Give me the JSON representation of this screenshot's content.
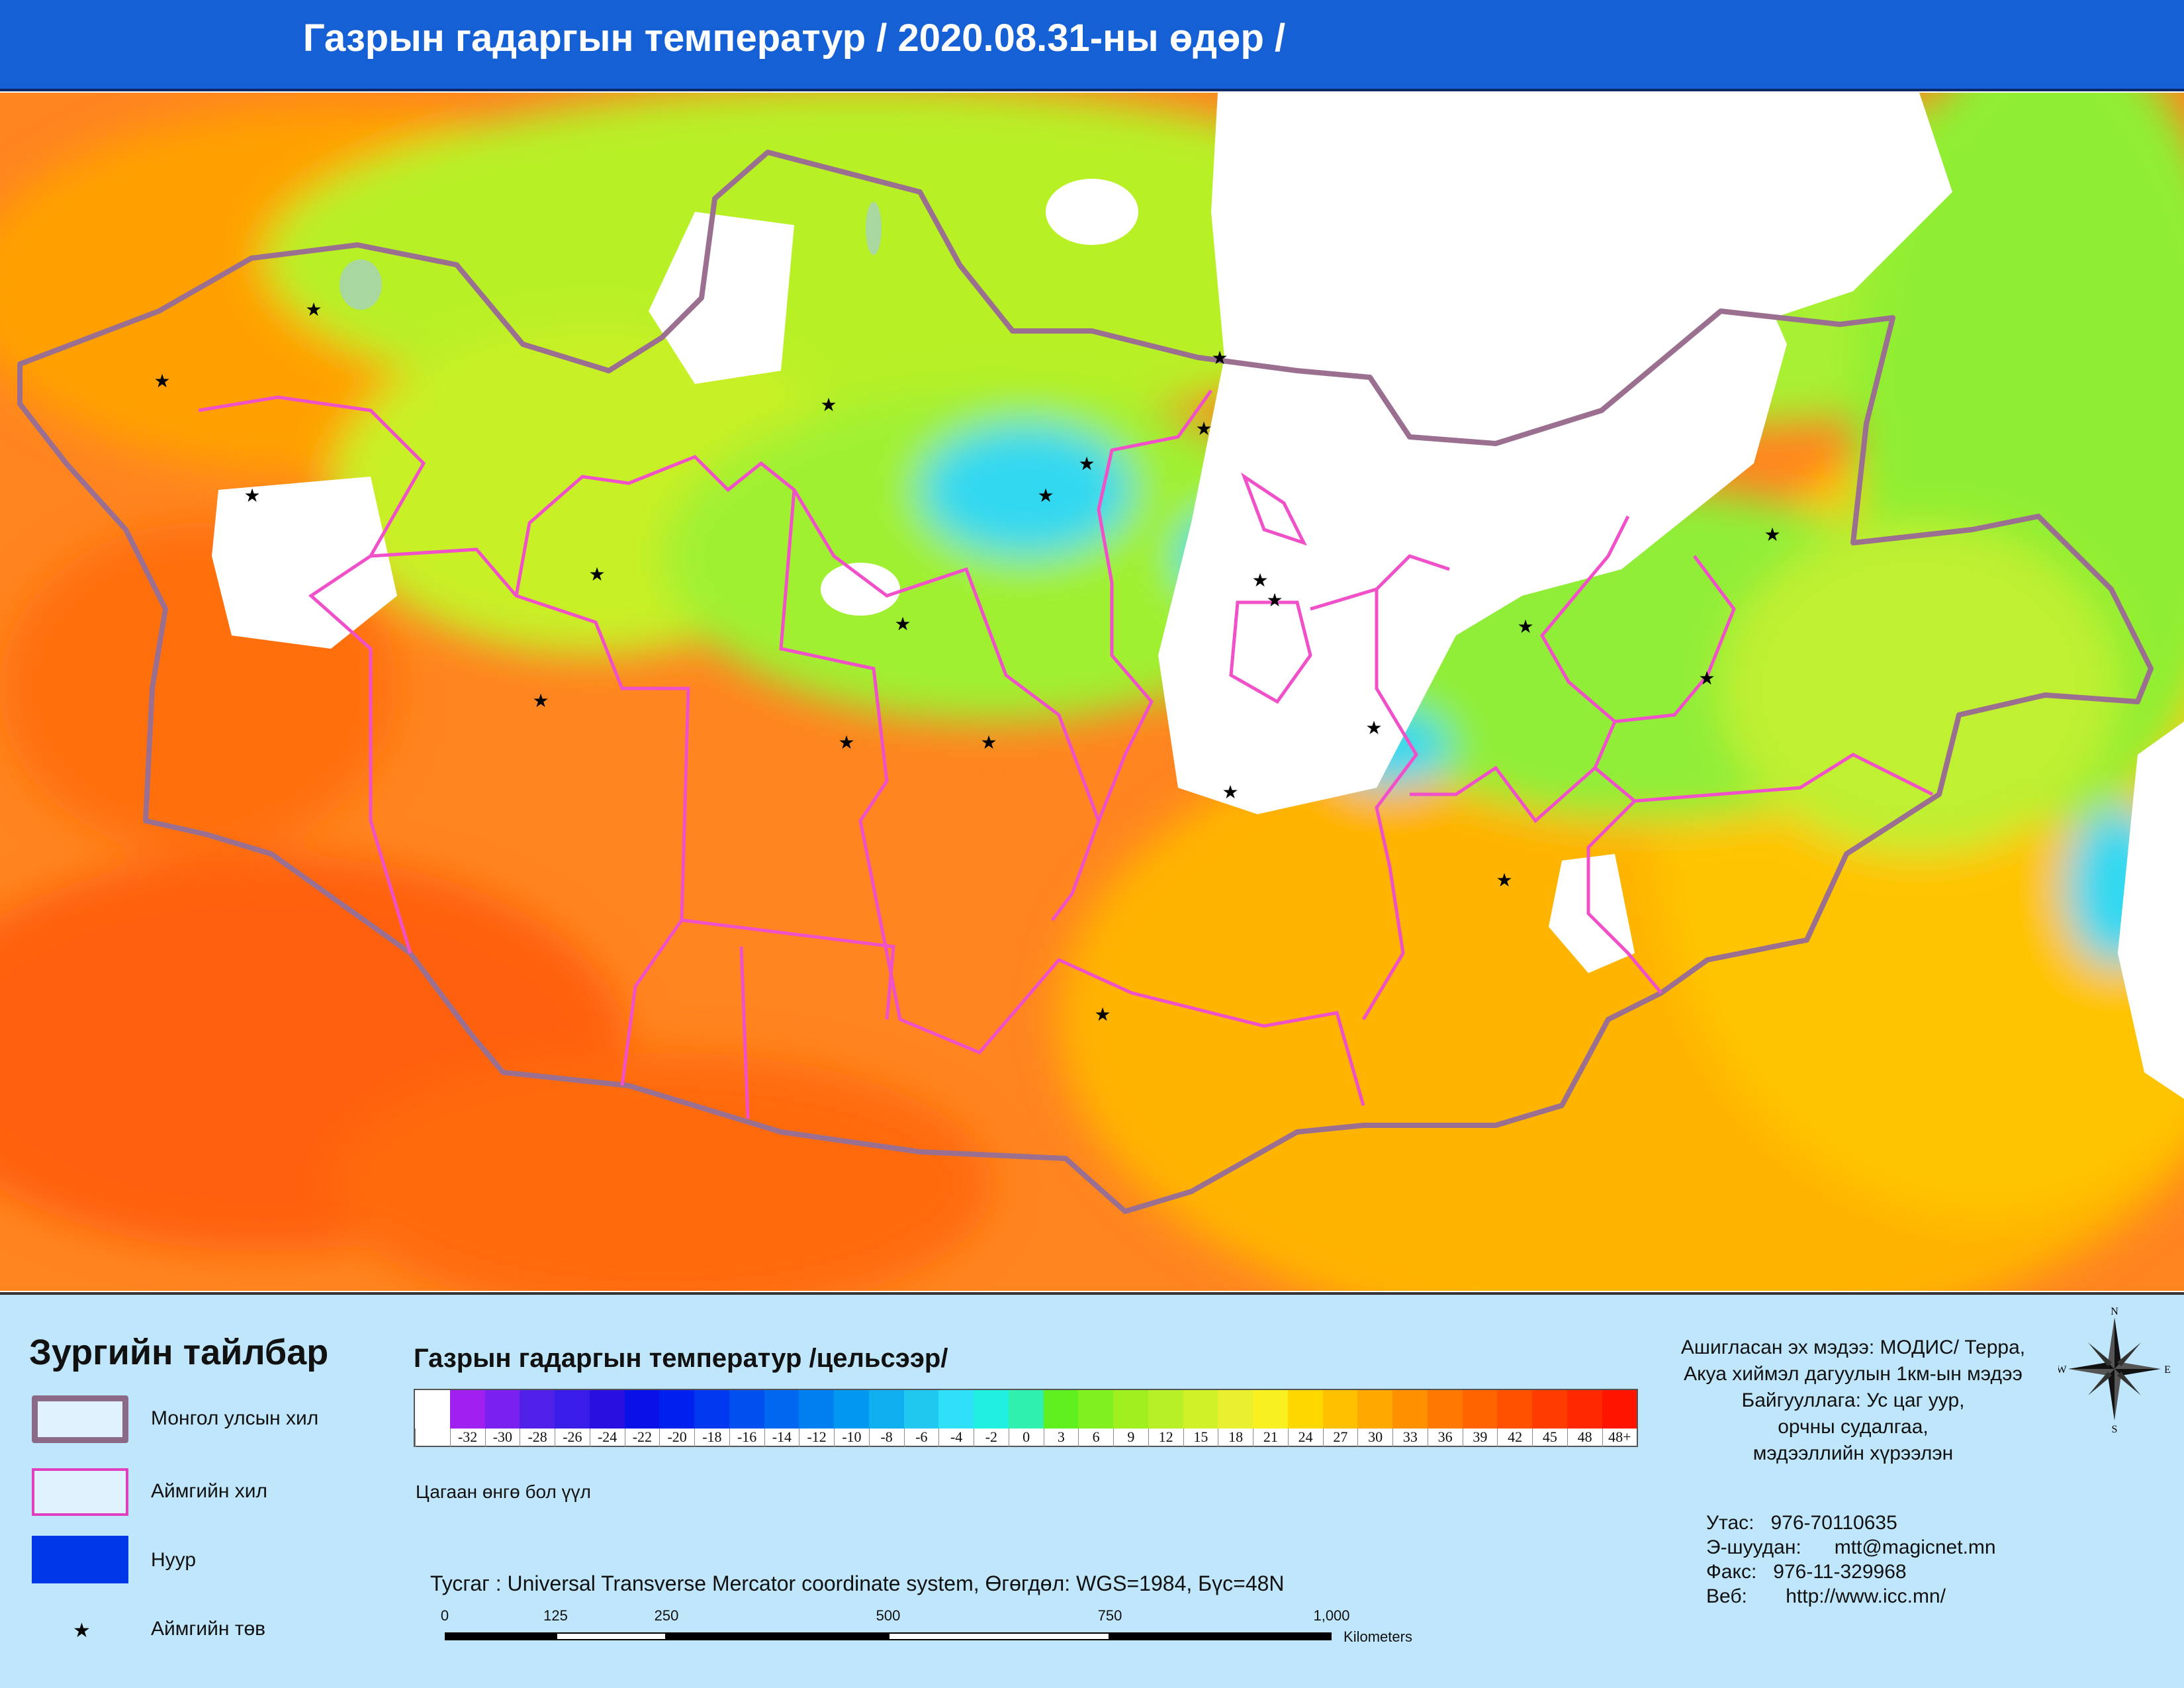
{
  "header": {
    "title": "Газрын гадаргын температур / 2020.08.31-ны өдөр /"
  },
  "map": {
    "colors": {
      "hot": "#ff7a18",
      "warm": "#ffb000",
      "mild": "#c8f020",
      "cool": "#7ee840",
      "cloud": "#ffffff",
      "cold": "#33e0f0",
      "border": "#9b6f8f",
      "aimag_border": "#f050c8"
    },
    "description_icons": [
      "star-icon"
    ]
  },
  "legend": {
    "title": "Зургийн тайлбар",
    "items": [
      {
        "label": "Монгол улсын хил"
      },
      {
        "label": "Аймгийн хил"
      },
      {
        "label": "Нуур"
      },
      {
        "label": "Аймгийн төв"
      }
    ],
    "scale_title": "Газрын гадаргын температур /цельсээр/",
    "scale_ticks": [
      "",
      "-32",
      "-30",
      "-28",
      "-26",
      "-24",
      "-22",
      "-20",
      "-18",
      "-16",
      "-14",
      "-12",
      "-10",
      "-8",
      "-6",
      "-4",
      "-2",
      "0",
      "3",
      "6",
      "9",
      "12",
      "15",
      "18",
      "21",
      "24",
      "27",
      "30",
      "33",
      "36",
      "39",
      "42",
      "45",
      "48",
      "48+"
    ],
    "scale_colors": [
      "#ffffff",
      "#a020f0",
      "#7a20f0",
      "#5020e8",
      "#3a1ce8",
      "#2a10e0",
      "#0a10e8",
      "#0020f0",
      "#0038f0",
      "#0050f0",
      "#0068f0",
      "#0080f0",
      "#0098f0",
      "#10b0f0",
      "#20c8f0",
      "#30e0f8",
      "#20f0e0",
      "#30f0b0",
      "#60f020",
      "#80f020",
      "#a0f020",
      "#b8f028",
      "#d0f028",
      "#e8f030",
      "#f8f020",
      "#ffd800",
      "#ffc000",
      "#ffa800",
      "#ff9000",
      "#ff7800",
      "#ff6400",
      "#ff5000",
      "#ff3c00",
      "#ff2800",
      "#ff1400"
    ],
    "white_note": "Цагаан өнгө бол үүл",
    "projection": "Тусгаг : Universal Transverse Mercator coordinate system, Өгөгдөл: WGS=1984, Бүс=48N",
    "scale_labels": [
      "0",
      "125",
      "250",
      "500",
      "750",
      "1,000"
    ],
    "scale_unit": "Kilometers",
    "source": [
      "Ашигласан эх мэдээ: МОДИС/ Терра,",
      "Акуа хиймэл дагуулын 1км-ын мэдээ",
      "Байгууллага: Ус цаг уур,",
      "орчны судалгаа,",
      "мэдээллийн хүрээлэн"
    ],
    "contact": {
      "phone": "Утас:   976-70110635",
      "email": "Э-шуудан:      mtt@magicnet.mn",
      "fax": "Факс:   976-11-329968",
      "web": "Веб:       http://www.icc.mn/"
    },
    "compass": {
      "n": "N",
      "s": "S",
      "e": "E",
      "w": "W"
    }
  }
}
